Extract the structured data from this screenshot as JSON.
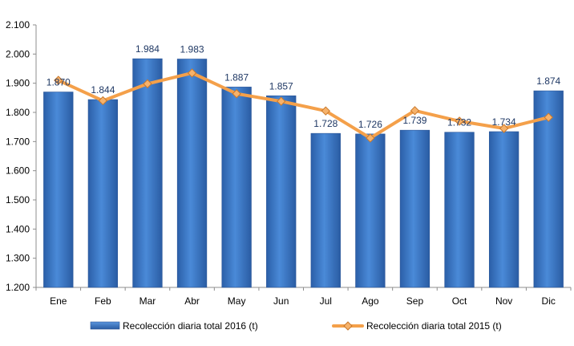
{
  "chart_data": {
    "type": "bar",
    "categories": [
      "Ene",
      "Feb",
      "Mar",
      "Abr",
      "May",
      "Jun",
      "Jul",
      "Ago",
      "Sep",
      "Oct",
      "Nov",
      "Dic"
    ],
    "series": [
      {
        "name": "Recolección diaria total 2016 (t)",
        "kind": "bar",
        "color": "#3b78c8",
        "values": [
          1870,
          1844,
          1984,
          1983,
          1887,
          1857,
          1728,
          1726,
          1739,
          1732,
          1734,
          1874
        ],
        "data_labels": [
          "1.870",
          "1.844",
          "1.984",
          "1.983",
          "1.887",
          "1.857",
          "1.728",
          "1.726",
          "1.739",
          "1.732",
          "1.734",
          "1.874"
        ]
      },
      {
        "name": "Recolección diaria total 2015 (t)",
        "kind": "line",
        "color": "#f4a04a",
        "values": [
          1910,
          1840,
          1898,
          1935,
          1864,
          1838,
          1805,
          1712,
          1806,
          1770,
          1745,
          1783
        ]
      }
    ],
    "y_ticks": [
      "1.200",
      "1.300",
      "1.400",
      "1.500",
      "1.600",
      "1.700",
      "1.800",
      "1.900",
      "2.000",
      "2.100"
    ],
    "ylim": [
      1200,
      2100
    ],
    "legend_position": "bottom",
    "grid": false
  }
}
